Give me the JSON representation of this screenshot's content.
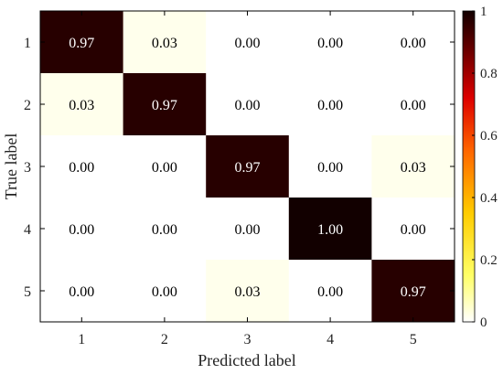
{
  "chart_data": {
    "type": "heatmap",
    "title": "",
    "xlabel": "Predicted label",
    "ylabel": "True label",
    "x_categories": [
      "1",
      "2",
      "3",
      "4",
      "5"
    ],
    "y_categories": [
      "1",
      "2",
      "3",
      "4",
      "5"
    ],
    "values": [
      [
        0.97,
        0.03,
        0.0,
        0.0,
        0.0
      ],
      [
        0.03,
        0.97,
        0.0,
        0.0,
        0.0
      ],
      [
        0.0,
        0.0,
        0.97,
        0.0,
        0.03
      ],
      [
        0.0,
        0.0,
        0.0,
        1.0,
        0.0
      ],
      [
        0.0,
        0.0,
        0.03,
        0.0,
        0.97
      ]
    ],
    "cell_labels": [
      [
        "0.97",
        "0.03",
        "0.00",
        "0.00",
        "0.00"
      ],
      [
        "0.03",
        "0.97",
        "0.00",
        "0.00",
        "0.00"
      ],
      [
        "0.00",
        "0.00",
        "0.97",
        "0.00",
        "0.03"
      ],
      [
        "0.00",
        "0.00",
        "0.00",
        "1.00",
        "0.00"
      ],
      [
        "0.00",
        "0.00",
        "0.03",
        "0.00",
        "0.97"
      ]
    ],
    "colorbar": {
      "colormap": "hot-reversed",
      "range": [
        0,
        1
      ],
      "ticks": [
        0,
        0.2,
        0.4,
        0.6,
        0.8,
        1
      ],
      "tick_labels": [
        "0",
        "0.2",
        "0.4",
        "0.6",
        "0.8",
        "1"
      ]
    },
    "grid": false
  }
}
